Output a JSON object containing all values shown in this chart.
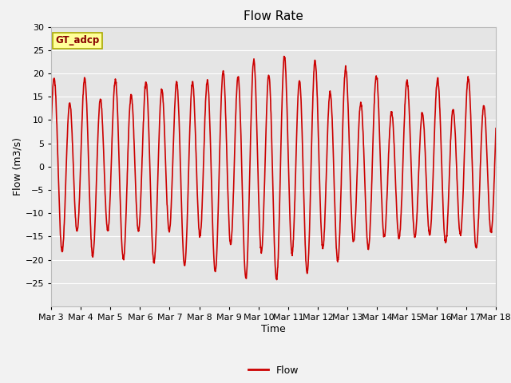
{
  "title": "Flow Rate",
  "xlabel": "Time",
  "ylabel": "Flow (m3/s)",
  "ylim": [
    -30,
    30
  ],
  "yticks": [
    -25,
    -20,
    -15,
    -10,
    -5,
    0,
    5,
    10,
    15,
    20,
    25,
    30
  ],
  "line_color": "#CC0000",
  "line_width": 1.2,
  "background_color": "#E5E5E5",
  "figure_color": "#F2F2F2",
  "legend_label": "Flow",
  "annotation_text": "GT_adcp",
  "annotation_bg": "#FFFF99",
  "annotation_border": "#AAAA00",
  "title_fontsize": 11,
  "axis_label_fontsize": 9,
  "tick_fontsize": 8,
  "xtick_labels": [
    "Mar 3",
    "Mar 4",
    "Mar 5",
    "Mar 6",
    "Mar 7",
    "Mar 8",
    "Mar 9",
    "Mar 10",
    "Mar 11",
    "Mar 12",
    "Mar 13",
    "Mar 14",
    "Mar 15",
    "Mar 16",
    "Mar 17",
    "Mar 18"
  ],
  "xtick_positions": [
    3,
    4,
    5,
    6,
    7,
    8,
    9,
    10,
    11,
    12,
    13,
    14,
    15,
    16,
    17,
    18
  ]
}
